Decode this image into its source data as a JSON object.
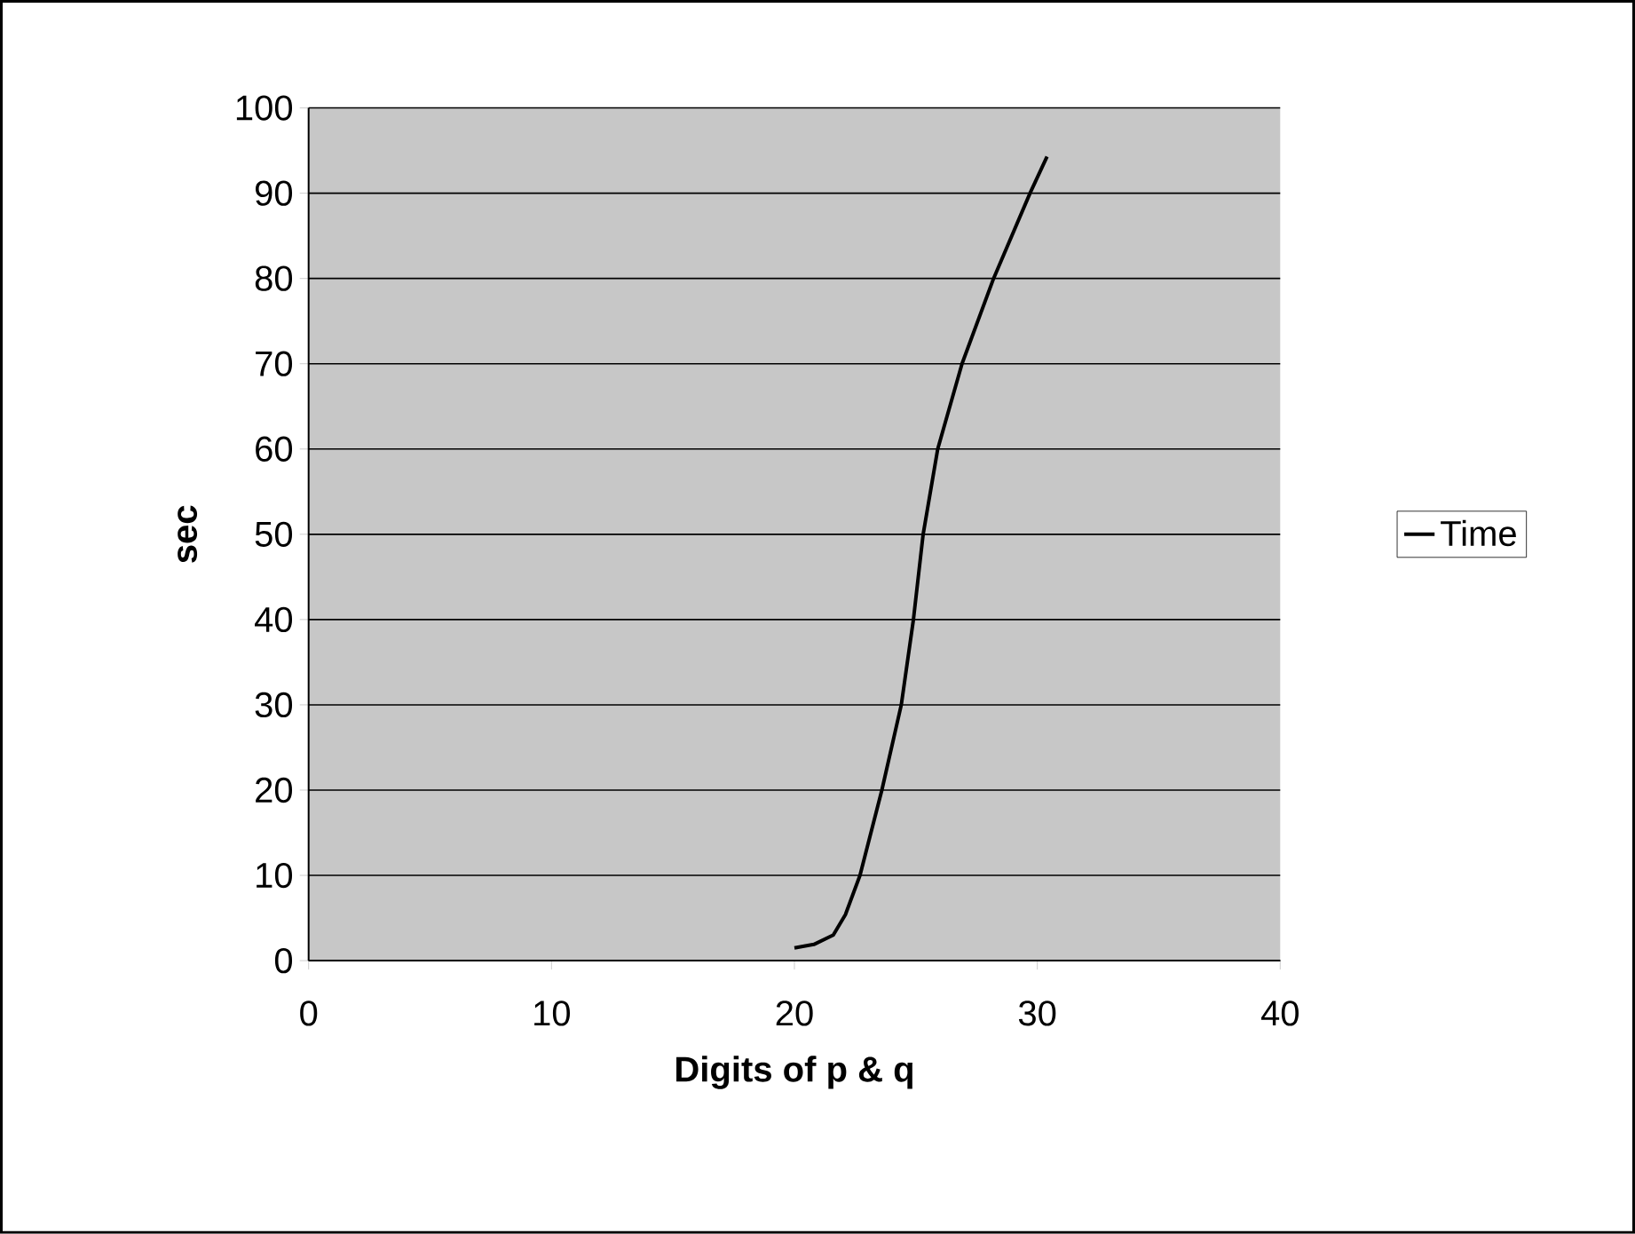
{
  "chart_data": {
    "type": "line",
    "xlabel": "Digits of p & q",
    "ylabel": "sec",
    "series": [
      {
        "name": "Time",
        "color": "#000000",
        "x": [
          20.0,
          20.8,
          21.6,
          22.1,
          22.7,
          23.6,
          24.4,
          24.9,
          25.3,
          25.9,
          26.9,
          28.2,
          29.7,
          30.4
        ],
        "values": [
          1.5,
          1.9,
          3,
          5.4,
          10,
          20,
          30,
          40,
          50,
          60,
          70,
          80,
          90,
          94.3
        ]
      }
    ],
    "xlim": [
      0,
      40
    ],
    "ylim": [
      0,
      100
    ],
    "xticks": [
      0,
      10,
      20,
      30,
      40
    ],
    "yticks": [
      0,
      10,
      20,
      30,
      40,
      50,
      60,
      70,
      80,
      90,
      100
    ],
    "grid": "y",
    "legend": "right",
    "marker": "none",
    "line_style": "solid"
  }
}
